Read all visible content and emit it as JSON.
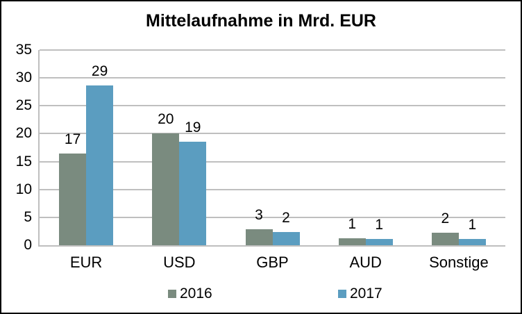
{
  "chart_data": {
    "type": "bar",
    "title": "Mittelaufnahme in Mrd. EUR",
    "xlabel": "",
    "ylabel": "",
    "categories": [
      "EUR",
      "USD",
      "GBP",
      "AUD",
      "Sonstige"
    ],
    "series": [
      {
        "name": "2016",
        "color": "#7A8B7F",
        "values": [
          16.5,
          20.0,
          2.9,
          1.3,
          2.2
        ],
        "data_labels": [
          "17",
          "20",
          "3",
          "1",
          "2"
        ]
      },
      {
        "name": "2017",
        "color": "#5B9DC0",
        "values": [
          28.7,
          18.6,
          2.4,
          1.1,
          1.1
        ],
        "data_labels": [
          "29",
          "19",
          "2",
          "1",
          "1"
        ]
      }
    ],
    "y_axis": {
      "min": 0,
      "max": 35,
      "step": 5,
      "tick_labels": [
        "0",
        "5",
        "10",
        "15",
        "20",
        "25",
        "30",
        "35"
      ]
    },
    "legend": {
      "position": "bottom",
      "entries": [
        "2016",
        "2017"
      ]
    },
    "grid": true,
    "styles": {
      "gridline_color": "#BFBFBF",
      "axis_color": "#BFBFBF",
      "text_color": "#000000",
      "frame_border_color": "#000000",
      "background": "#FFFFFF"
    }
  }
}
